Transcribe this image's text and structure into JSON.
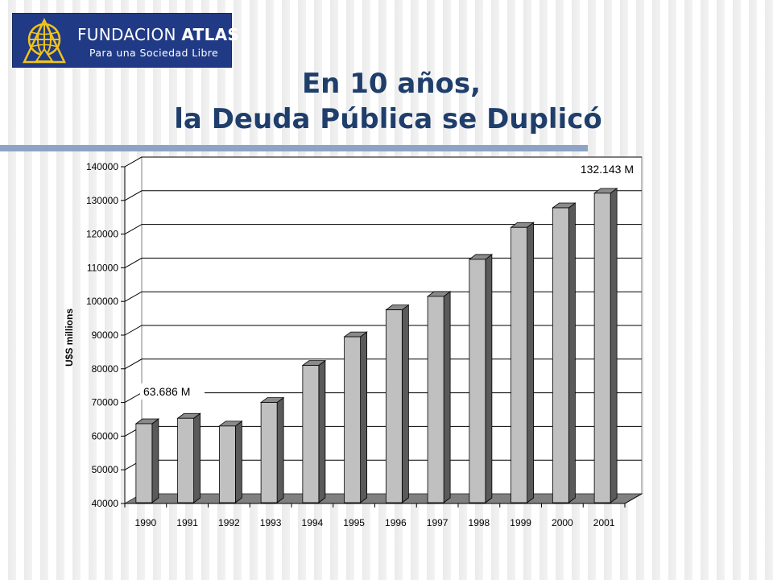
{
  "logo": {
    "name_regular": "FUNDACION",
    "name_bold": "ATLAS",
    "tagline": "Para una Sociedad Libre",
    "colors": {
      "background": "#213a86",
      "emblem": "#f0c419"
    }
  },
  "title": {
    "line1": "En 10 años,",
    "line2": "la Deuda Pública se Duplicó"
  },
  "chart_data": {
    "type": "bar",
    "categories": [
      "1990",
      "1991",
      "1992",
      "1993",
      "1994",
      "1995",
      "1996",
      "1997",
      "1998",
      "1999",
      "2000",
      "2001"
    ],
    "values": [
      63686,
      65300,
      63000,
      70000,
      81000,
      89500,
      97500,
      101500,
      112500,
      122000,
      127800,
      132143
    ],
    "ylabel": "U$S millions",
    "ylim": [
      40000,
      140000
    ],
    "yticks": [
      40000,
      50000,
      60000,
      70000,
      80000,
      90000,
      100000,
      110000,
      120000,
      130000,
      140000
    ],
    "grid": true,
    "style": "3d",
    "bar_color": "#c0c0c0",
    "annotations": [
      {
        "category": "1990",
        "text": "63.686 M",
        "placement": "left"
      },
      {
        "category": "2001",
        "text": "132.143 M",
        "placement": "top-right"
      }
    ]
  }
}
